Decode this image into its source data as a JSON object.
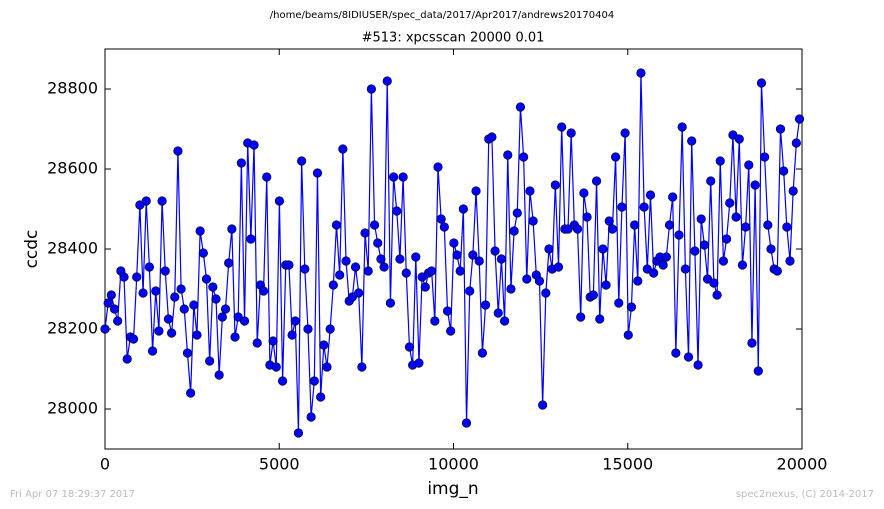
{
  "chart_data": {
    "type": "line",
    "title": "/home/beams/8IDIUSER/spec_data/2017/Apr2017/andrews20170404",
    "subtitle": "#513: xpcsscan 20000 0.01",
    "xlabel": "img_n",
    "ylabel": "ccdc",
    "footer_left": "Fri Apr 07 18:29:37 2017",
    "footer_right": "spec2nexus, (C) 2014-2017",
    "xlim": [
      0,
      20000
    ],
    "ylim": [
      27900,
      28900
    ],
    "xticks": [
      0,
      5000,
      10000,
      15000,
      20000
    ],
    "yticks": [
      28000,
      28200,
      28400,
      28600,
      28800
    ],
    "grid": false,
    "x": [
      0,
      91,
      182,
      273,
      364,
      455,
      546,
      637,
      728,
      819,
      910,
      1001,
      1092,
      1183,
      1274,
      1365,
      1456,
      1547,
      1638,
      1729,
      1820,
      1911,
      2002,
      2093,
      2184,
      2275,
      2366,
      2457,
      2548,
      2639,
      2730,
      2821,
      2912,
      3003,
      3094,
      3185,
      3276,
      3367,
      3458,
      3549,
      3640,
      3731,
      3822,
      3913,
      4004,
      4095,
      4186,
      4277,
      4368,
      4459,
      4550,
      4641,
      4732,
      4823,
      4914,
      5005,
      5096,
      5187,
      5278,
      5369,
      5460,
      5551,
      5642,
      5733,
      5824,
      5915,
      6006,
      6097,
      6188,
      6279,
      6370,
      6461,
      6552,
      6643,
      6734,
      6825,
      6916,
      7007,
      7098,
      7189,
      7280,
      7371,
      7462,
      7553,
      7644,
      7735,
      7826,
      7917,
      8008,
      8099,
      8190,
      8281,
      8372,
      8463,
      8554,
      8645,
      8736,
      8827,
      8918,
      9009,
      9100,
      9191,
      9282,
      9373,
      9464,
      9555,
      9646,
      9737,
      9828,
      9919,
      10010,
      10101,
      10192,
      10283,
      10374,
      10465,
      10556,
      10647,
      10738,
      10829,
      10920,
      11011,
      11102,
      11193,
      11284,
      11375,
      11466,
      11557,
      11648,
      11739,
      11830,
      11921,
      12012,
      12103,
      12194,
      12285,
      12376,
      12467,
      12558,
      12649,
      12740,
      12831,
      12922,
      13013,
      13104,
      13195,
      13286,
      13377,
      13468,
      13559,
      13650,
      13741,
      13832,
      13923,
      14014,
      14105,
      14196,
      14287,
      14378,
      14469,
      14560,
      14651,
      14742,
      14833,
      14924,
      15015,
      15106,
      15197,
      15288,
      15379,
      15470,
      15561,
      15652,
      15743,
      15834,
      15925,
      16016,
      16107,
      16198,
      16289,
      16380,
      16471,
      16562,
      16653,
      16744,
      16835,
      16926,
      17017,
      17108,
      17199,
      17290,
      17381,
      17472,
      17563,
      17654,
      17745,
      17836,
      17927,
      18018,
      18109,
      18200,
      18291,
      18382,
      18473,
      18564,
      18655,
      18746,
      18837,
      18928,
      19019,
      19110,
      19201,
      19292,
      19383,
      19474,
      19565,
      19656,
      19747,
      19838,
      19929
    ],
    "series": [
      {
        "color": "#0000ff",
        "values": [
          28200,
          28265,
          28285,
          28250,
          28220,
          28345,
          28330,
          28125,
          28180,
          28175,
          28330,
          28510,
          28290,
          28520,
          28355,
          28145,
          28295,
          28195,
          28520,
          28345,
          28225,
          28190,
          28280,
          28645,
          28300,
          28250,
          28140,
          28040,
          28260,
          28185,
          28445,
          28390,
          28325,
          28120,
          28305,
          28275,
          28085,
          28230,
          28250,
          28365,
          28450,
          28180,
          28230,
          28615,
          28220,
          28665,
          28425,
          28660,
          28165,
          28310,
          28295,
          28580,
          28110,
          28170,
          28105,
          28520,
          28070,
          28360,
          28360,
          28185,
          28220,
          27940,
          28620,
          28350,
          28200,
          27980,
          28070,
          28590,
          28030,
          28160,
          28105,
          28200,
          28310,
          28460,
          28335,
          28650,
          28370,
          28270,
          28280,
          28355,
          28290,
          28105,
          28440,
          28345,
          28800,
          28460,
          28415,
          28375,
          28355,
          28820,
          28265,
          28580,
          28495,
          28375,
          28580,
          28340,
          28155,
          28110,
          28380,
          28115,
          28330,
          28305,
          28340,
          28345,
          28220,
          28605,
          28475,
          28455,
          28245,
          28195,
          28415,
          28385,
          28345,
          28500,
          27965,
          28295,
          28385,
          28545,
          28370,
          28140,
          28260,
          28675,
          28680,
          28395,
          28240,
          28375,
          28220,
          28635,
          28300,
          28445,
          28490,
          28755,
          28630,
          28325,
          28545,
          28470,
          28335,
          28320,
          28010,
          28290,
          28400,
          28350,
          28560,
          28355,
          28705,
          28450,
          28450,
          28690,
          28460,
          28450,
          28230,
          28540,
          28480,
          28280,
          28285,
          28570,
          28225,
          28400,
          28310,
          28470,
          28450,
          28630,
          28265,
          28505,
          28690,
          28185,
          28255,
          28460,
          28320,
          28840,
          28505,
          28350,
          28535,
          28340,
          28370,
          28380,
          28360,
          28380,
          28460,
          28530,
          28140,
          28435,
          28705,
          28350,
          28130,
          28670,
          28395,
          28110,
          28475,
          28410,
          28325,
          28570,
          28315,
          28285,
          28620,
          28370,
          28425,
          28515,
          28685,
          28480,
          28675,
          28360,
          28455,
          28610,
          28165,
          28560,
          28095,
          28815,
          28630,
          28460,
          28400,
          28350,
          28345,
          28700,
          28595,
          28455,
          28370,
          28545,
          28665,
          28725
        ]
      }
    ]
  }
}
